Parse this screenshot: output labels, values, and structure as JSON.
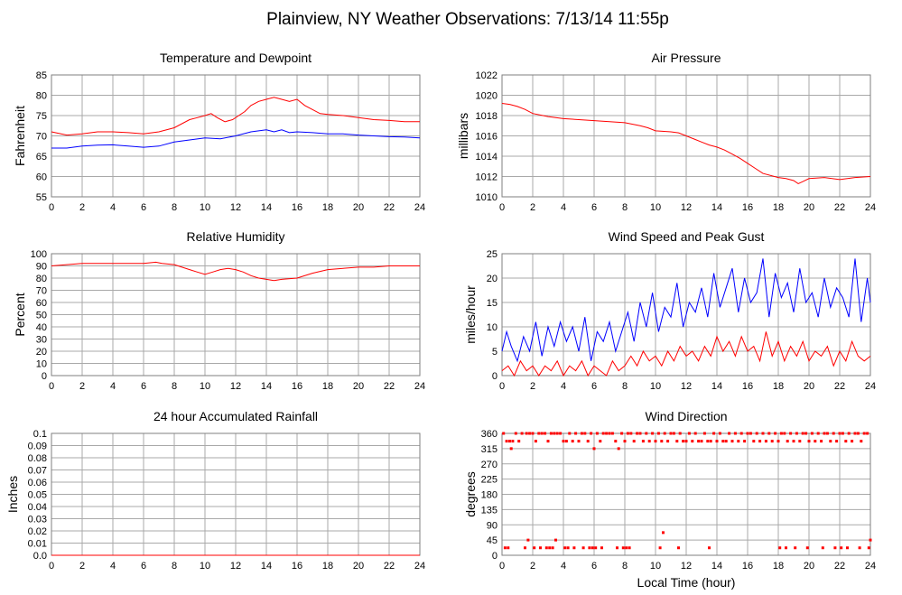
{
  "page_title": "Plainview, NY Weather Observations: 7/13/14 11:55p",
  "shared_xlabel": "Local Time (hour)",
  "colors": {
    "red": "#ff0000",
    "blue": "#0000ff",
    "grid": "#a9a9a9",
    "frame": "#7f7f7f"
  },
  "chart_data": [
    {
      "id": "temp",
      "type": "line",
      "title": "Temperature and Dewpoint",
      "ylabel": "Fahrenheit",
      "xlabel": "",
      "xlim": [
        0,
        24
      ],
      "ylim": [
        55,
        85
      ],
      "xticks": [
        0,
        2,
        4,
        6,
        8,
        10,
        12,
        14,
        16,
        18,
        20,
        22,
        24
      ],
      "yticks": [
        55,
        60,
        65,
        70,
        75,
        80,
        85
      ],
      "grid": true,
      "series": [
        {
          "color": "#ff0000",
          "x": [
            0,
            1,
            2,
            3,
            4,
            5,
            6,
            7,
            8,
            9,
            9.5,
            10,
            10.4,
            10.8,
            11.3,
            11.8,
            12.2,
            12.6,
            13,
            13.5,
            14,
            14.5,
            15,
            15.5,
            16,
            16.5,
            17,
            17.5,
            18,
            19,
            20,
            21,
            22,
            23,
            24
          ],
          "y": [
            71,
            70.2,
            70.5,
            71,
            71,
            70.8,
            70.5,
            71,
            72,
            74,
            74.5,
            75,
            75.5,
            74.5,
            73.5,
            74,
            75,
            76,
            77.5,
            78.5,
            79,
            79.5,
            79,
            78.5,
            79,
            77.5,
            76.5,
            75.5,
            75.3,
            75,
            74.5,
            74,
            73.8,
            73.5,
            73.5
          ]
        },
        {
          "color": "#0000ff",
          "x": [
            0,
            1,
            2,
            3,
            4,
            5,
            6,
            7,
            8,
            9,
            10,
            11,
            12,
            13,
            14,
            14.5,
            15,
            15.5,
            16,
            17,
            18,
            19,
            20,
            21,
            22,
            23,
            24
          ],
          "y": [
            67,
            67,
            67.5,
            67.7,
            67.8,
            67.5,
            67.2,
            67.5,
            68.5,
            69,
            69.5,
            69.3,
            70,
            71,
            71.5,
            71,
            71.5,
            70.8,
            71,
            70.8,
            70.5,
            70.5,
            70.2,
            70,
            69.8,
            69.7,
            69.5
          ]
        }
      ]
    },
    {
      "id": "pressure",
      "type": "line",
      "title": "Air Pressure",
      "ylabel": "millibars",
      "xlabel": "",
      "xlim": [
        0,
        24
      ],
      "ylim": [
        1010,
        1022
      ],
      "xticks": [
        0,
        2,
        4,
        6,
        8,
        10,
        12,
        14,
        16,
        18,
        20,
        22,
        24
      ],
      "yticks": [
        1010,
        1012,
        1014,
        1016,
        1018,
        1020,
        1022
      ],
      "grid": true,
      "series": [
        {
          "color": "#ff0000",
          "x": [
            0,
            0.5,
            1,
            1.5,
            2,
            3,
            4,
            5,
            6,
            7,
            8,
            9,
            9.5,
            10,
            11,
            11.5,
            12,
            12.5,
            13,
            13.5,
            14,
            14.5,
            15,
            15.5,
            16,
            16.5,
            17,
            18,
            18.5,
            19,
            19.3,
            19.6,
            20,
            21,
            22,
            23,
            24
          ],
          "y": [
            1019.2,
            1019.1,
            1018.9,
            1018.6,
            1018.2,
            1017.9,
            1017.7,
            1017.6,
            1017.5,
            1017.4,
            1017.3,
            1017,
            1016.8,
            1016.5,
            1016.4,
            1016.3,
            1016,
            1015.7,
            1015.4,
            1015.1,
            1014.9,
            1014.6,
            1014.2,
            1013.8,
            1013.3,
            1012.8,
            1012.3,
            1011.9,
            1011.8,
            1011.6,
            1011.3,
            1011.5,
            1011.8,
            1011.9,
            1011.7,
            1011.9,
            1012
          ]
        }
      ]
    },
    {
      "id": "humidity",
      "type": "line",
      "title": "Relative Humidity",
      "ylabel": "Percent",
      "xlabel": "",
      "xlim": [
        0,
        24
      ],
      "ylim": [
        0,
        100
      ],
      "xticks": [
        0,
        2,
        4,
        6,
        8,
        10,
        12,
        14,
        16,
        18,
        20,
        22,
        24
      ],
      "yticks": [
        0,
        10,
        20,
        30,
        40,
        50,
        60,
        70,
        80,
        90,
        100
      ],
      "grid": true,
      "series": [
        {
          "color": "#ff0000",
          "x": [
            0,
            1,
            2,
            3,
            4,
            5,
            6,
            6.8,
            7.2,
            8,
            8.5,
            9,
            9.5,
            10,
            10.5,
            11,
            11.5,
            12,
            12.5,
            13,
            13.5,
            14,
            14.5,
            15,
            16,
            17,
            18,
            19,
            20,
            21,
            22,
            23,
            24
          ],
          "y": [
            90,
            91,
            92,
            92,
            92,
            92,
            92,
            93,
            92,
            91,
            89,
            87,
            85,
            83,
            85,
            87,
            88,
            87,
            85,
            82,
            80,
            79,
            78,
            79,
            80,
            84,
            87,
            88,
            89,
            89,
            90,
            90,
            90
          ]
        }
      ]
    },
    {
      "id": "wind",
      "type": "line",
      "title": "Wind Speed and Peak Gust",
      "ylabel": "miles/hour",
      "xlabel": "",
      "xlim": [
        0,
        24
      ],
      "ylim": [
        0,
        25
      ],
      "xticks": [
        0,
        2,
        4,
        6,
        8,
        10,
        12,
        14,
        16,
        18,
        20,
        22,
        24
      ],
      "yticks": [
        0,
        5,
        10,
        15,
        20,
        25
      ],
      "grid": true,
      "series": [
        {
          "color": "#0000ff",
          "x": [
            0,
            0.3,
            0.6,
            1,
            1.4,
            1.8,
            2.2,
            2.6,
            3,
            3.4,
            3.8,
            4.2,
            4.6,
            5,
            5.4,
            5.8,
            6.2,
            6.6,
            7,
            7.4,
            7.8,
            8.2,
            8.6,
            9,
            9.4,
            9.8,
            10.2,
            10.6,
            11,
            11.4,
            11.8,
            12.2,
            12.6,
            13,
            13.4,
            13.8,
            14.2,
            14.6,
            15,
            15.4,
            15.8,
            16.2,
            16.6,
            17,
            17.4,
            17.8,
            18.2,
            18.6,
            19,
            19.4,
            19.8,
            20.2,
            20.6,
            21,
            21.4,
            21.8,
            22.2,
            22.6,
            23,
            23.4,
            23.8,
            24
          ],
          "y": [
            5,
            9,
            6,
            3,
            8,
            5,
            11,
            4,
            10,
            6,
            11,
            7,
            10,
            5,
            12,
            3,
            9,
            7,
            11,
            5,
            9,
            13,
            7,
            15,
            10,
            17,
            9,
            14,
            12,
            19,
            10,
            15,
            13,
            18,
            12,
            21,
            14,
            18,
            22,
            13,
            20,
            15,
            17,
            24,
            12,
            21,
            16,
            19,
            13,
            22,
            15,
            17,
            12,
            20,
            14,
            18,
            16,
            12,
            24,
            11,
            20,
            15
          ]
        },
        {
          "color": "#ff0000",
          "x": [
            0,
            0.4,
            0.8,
            1.2,
            1.6,
            2,
            2.4,
            2.8,
            3.2,
            3.6,
            4,
            4.4,
            4.8,
            5.2,
            5.6,
            6,
            6.4,
            6.8,
            7.2,
            7.6,
            8,
            8.4,
            8.8,
            9.2,
            9.6,
            10,
            10.4,
            10.8,
            11.2,
            11.6,
            12,
            12.4,
            12.8,
            13.2,
            13.6,
            14,
            14.4,
            14.8,
            15.2,
            15.6,
            16,
            16.4,
            16.8,
            17.2,
            17.6,
            18,
            18.4,
            18.8,
            19.2,
            19.6,
            20,
            20.4,
            20.8,
            21.2,
            21.6,
            22,
            22.4,
            22.8,
            23.2,
            23.6,
            24
          ],
          "y": [
            1,
            2,
            0,
            3,
            1,
            2,
            0,
            2,
            1,
            3,
            0,
            2,
            1,
            3,
            0,
            2,
            1,
            0,
            3,
            1,
            2,
            4,
            2,
            5,
            3,
            4,
            2,
            5,
            3,
            6,
            4,
            5,
            3,
            6,
            4,
            8,
            5,
            7,
            4,
            8,
            5,
            6,
            3,
            9,
            4,
            7,
            3,
            6,
            4,
            7,
            3,
            5,
            4,
            6,
            2,
            5,
            3,
            7,
            4,
            3,
            4
          ]
        }
      ]
    },
    {
      "id": "rain",
      "type": "line",
      "title": "24 hour Accumulated Rainfall",
      "ylabel": "Inches",
      "xlabel": "",
      "xlim": [
        0,
        24
      ],
      "ylim": [
        0,
        0.1
      ],
      "xticks": [
        0,
        2,
        4,
        6,
        8,
        10,
        12,
        14,
        16,
        18,
        20,
        22,
        24
      ],
      "yticks": [
        0,
        0.01,
        0.02,
        0.03,
        0.04,
        0.05,
        0.06,
        0.07,
        0.08,
        0.09,
        0.1
      ],
      "yticklabels": [
        "0.0",
        "0.01",
        "0.02",
        "0.03",
        "0.04",
        "0.05",
        "0.06",
        "0.07",
        "0.08",
        "0.09",
        "0.1"
      ],
      "grid": true,
      "series": [
        {
          "color": "#ff0000",
          "x": [
            0,
            24
          ],
          "y": [
            0,
            0
          ]
        }
      ]
    },
    {
      "id": "direction",
      "type": "scatter",
      "title": "Wind Direction",
      "ylabel": "degrees",
      "xlabel": "",
      "xlim": [
        0,
        24
      ],
      "ylim": [
        0,
        360
      ],
      "xticks": [
        0,
        2,
        4,
        6,
        8,
        10,
        12,
        14,
        16,
        18,
        20,
        22,
        24
      ],
      "yticks": [
        0,
        45,
        90,
        135,
        180,
        225,
        270,
        315,
        360
      ],
      "grid": true,
      "series": [
        {
          "color": "#ff0000",
          "x": [
            0.1,
            0.3,
            0.5,
            0.7,
            0.9,
            1.1,
            1.3,
            1.6,
            1.8,
            2.0,
            2.2,
            2.4,
            2.6,
            2.8,
            3.0,
            3.2,
            3.4,
            3.6,
            3.8,
            4.0,
            4.2,
            4.4,
            4.6,
            4.8,
            5.0,
            5.2,
            5.4,
            5.6,
            5.8,
            6.0,
            6.2,
            6.4,
            6.6,
            6.8,
            7.0,
            7.2,
            7.4,
            7.6,
            7.8,
            8.0,
            8.2,
            8.4,
            8.6,
            8.8,
            9.0,
            9.2,
            9.4,
            9.6,
            9.8,
            10.0,
            10.2,
            10.4,
            10.6,
            10.8,
            11.0,
            11.2,
            11.4,
            11.6,
            11.8,
            12.0,
            12.2,
            12.4,
            12.6,
            12.8,
            13.0,
            13.2,
            13.4,
            13.6,
            13.8,
            14.0,
            14.2,
            14.4,
            14.6,
            14.8,
            15.0,
            15.2,
            15.4,
            15.6,
            15.8,
            16.0,
            16.2,
            16.4,
            16.6,
            16.8,
            17.0,
            17.2,
            17.4,
            17.6,
            17.8,
            18.0,
            18.2,
            18.4,
            18.6,
            18.8,
            19.0,
            19.2,
            19.4,
            19.6,
            19.8,
            20.0,
            20.2,
            20.4,
            20.6,
            20.8,
            21.0,
            21.2,
            21.4,
            21.6,
            21.8,
            22.0,
            22.2,
            22.4,
            22.6,
            22.8,
            23.0,
            23.2,
            23.4,
            23.6,
            23.8,
            24.0,
            0.2,
            0.4,
            0.6,
            1.5,
            1.7,
            2.1,
            2.5,
            2.9,
            3.1,
            3.3,
            3.5,
            4.1,
            4.3,
            4.7,
            5.3,
            5.7,
            5.9,
            6.1,
            6.5,
            7.5,
            7.9,
            8.1,
            8.3,
            10.3,
            10.5,
            11.5,
            13.5,
            18.1,
            18.5,
            19.1,
            19.9,
            20.9,
            21.7,
            22.1,
            22.5,
            23.3,
            23.9
          ],
          "y": [
            360,
            337,
            337,
            337,
            360,
            337,
            360,
            360,
            360,
            360,
            337,
            360,
            360,
            360,
            337,
            360,
            360,
            360,
            360,
            337,
            337,
            360,
            337,
            360,
            337,
            360,
            360,
            337,
            360,
            315,
            360,
            337,
            360,
            360,
            360,
            360,
            337,
            315,
            360,
            337,
            360,
            360,
            337,
            360,
            360,
            337,
            360,
            337,
            360,
            337,
            360,
            337,
            360,
            337,
            360,
            360,
            337,
            360,
            337,
            337,
            360,
            337,
            360,
            337,
            337,
            360,
            337,
            337,
            360,
            337,
            360,
            337,
            337,
            360,
            337,
            360,
            337,
            360,
            337,
            360,
            360,
            337,
            360,
            337,
            360,
            337,
            360,
            337,
            360,
            337,
            360,
            360,
            337,
            360,
            337,
            360,
            337,
            360,
            360,
            337,
            360,
            337,
            360,
            337,
            360,
            360,
            337,
            360,
            337,
            360,
            360,
            337,
            360,
            337,
            360,
            360,
            337,
            360,
            360,
            45,
            22,
            22,
            315,
            22,
            45,
            22,
            22,
            22,
            22,
            22,
            45,
            22,
            22,
            22,
            22,
            22,
            22,
            22,
            22,
            22,
            22,
            22,
            22,
            22,
            67,
            22,
            22,
            22,
            22,
            22,
            22,
            22,
            22,
            22,
            22,
            22,
            22
          ]
        }
      ]
    }
  ]
}
